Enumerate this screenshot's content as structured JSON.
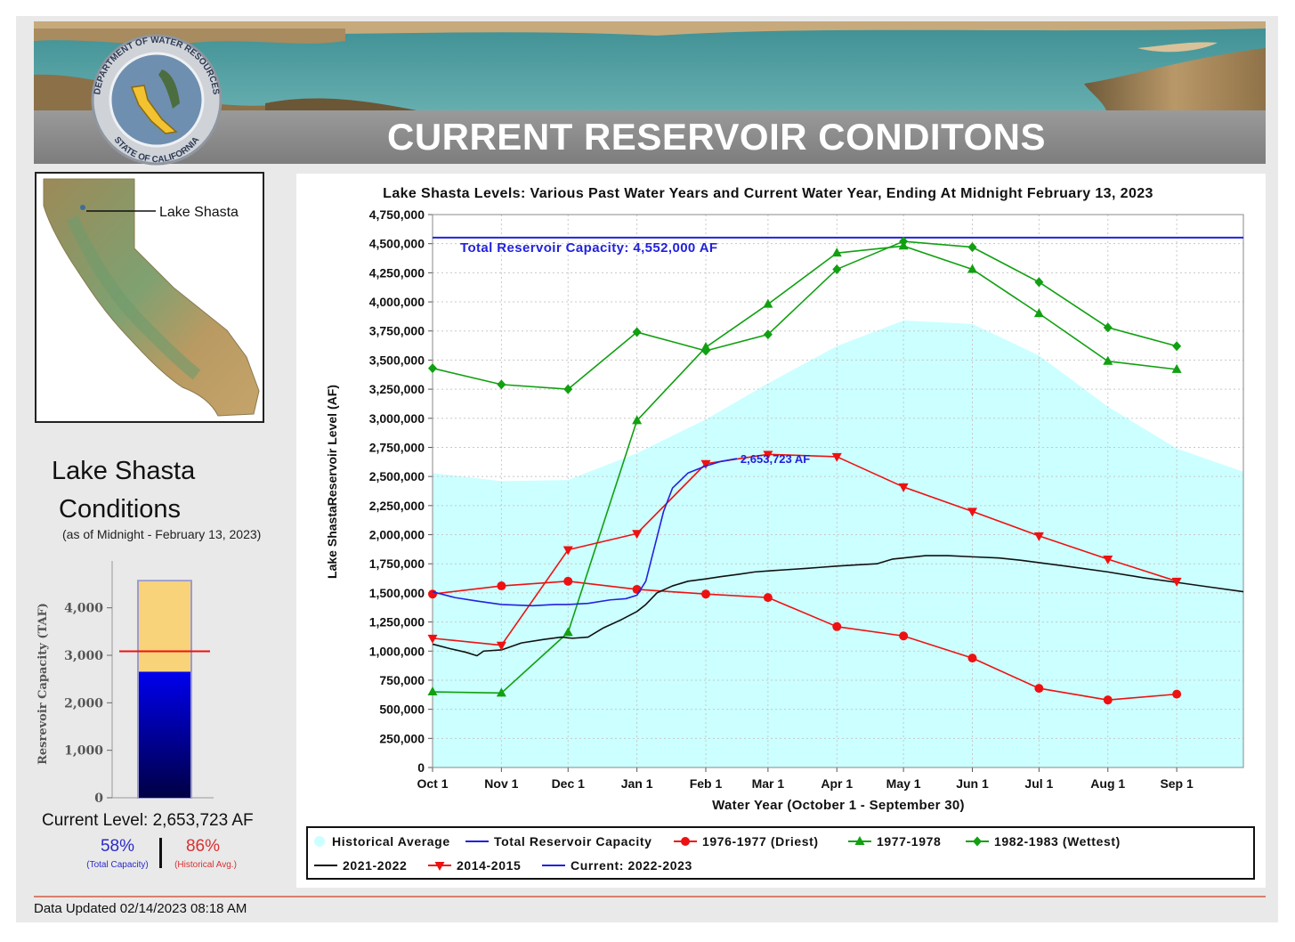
{
  "header": {
    "title": "CURRENT RESERVOIR CONDITONS"
  },
  "seal": {
    "text_top": "DEPARTMENT OF WATER RESOURCES",
    "text_bottom": "STATE OF CALIFORNIA"
  },
  "map": {
    "label": "Lake Shasta"
  },
  "conditions": {
    "title_line1": "Lake Shasta",
    "title_line2": "Conditions",
    "subtitle": "(as of Midnight - February 13, 2023)",
    "current_level": "Current Level: 2,653,723 AF",
    "pct_total": "58%",
    "pct_total_label": "(Total Capacity)",
    "pct_hist": "86%",
    "pct_hist_label": "(Historical Avg.)"
  },
  "gauge": {
    "ylabel": "Resrevoir Capacity (TAF)",
    "ticks": [
      0,
      1000,
      2000,
      3000,
      4000
    ],
    "tick_labels": [
      "0",
      "1,000",
      "2,000",
      "3,000",
      "4,000"
    ],
    "ymax": 4800,
    "capacity_taf": 4552,
    "current_taf": 2653.723,
    "historical_avg_taf": 3085,
    "colors": {
      "capacity": "#f8d37a",
      "current_top": "#0000ee",
      "current_bottom": "#000044",
      "hist_line": "#ee1111"
    }
  },
  "footer": {
    "updated": "Data Updated 02/14/2023 08:18 AM"
  },
  "colors": {
    "historical": "#ccffff",
    "capacity": "#2222dd",
    "driest": "#ee1111",
    "wet7778": "#11a011",
    "wettest": "#11a011",
    "y2122": "#111111",
    "y1415": "#ee1111",
    "current": "#2222dd"
  },
  "chart_data": {
    "type": "line",
    "title": "Lake Shasta Levels: Various Past Water Years and Current Water Year, Ending At Midnight February 13, 2023",
    "xlabel": "Water Year (October 1 - September 30)",
    "ylabel": "Lake ShastaReservoir Level (AF)",
    "xlim": [
      0,
      365
    ],
    "ylim": [
      0,
      4750000
    ],
    "x_ticks": [
      0,
      31,
      61,
      92,
      123,
      151,
      182,
      212,
      243,
      273,
      304,
      335
    ],
    "x_tick_labels": [
      "Oct 1",
      "Nov 1",
      "Dec 1",
      "Jan 1",
      "Feb 1",
      "Mar 1",
      "Apr 1",
      "May 1",
      "Jun 1",
      "Jul 1",
      "Aug 1",
      "Sep 1"
    ],
    "y_ticks": [
      0,
      250000,
      500000,
      750000,
      1000000,
      1250000,
      1500000,
      1750000,
      2000000,
      2250000,
      2500000,
      2750000,
      3000000,
      3250000,
      3500000,
      3750000,
      4000000,
      4250000,
      4500000,
      4750000
    ],
    "y_tick_labels": [
      "0",
      "250,000",
      "500,000",
      "750,000",
      "1,000,000",
      "1,250,000",
      "1,500,000",
      "1,750,000",
      "2,000,000",
      "2,250,000",
      "2,500,000",
      "2,750,000",
      "3,000,000",
      "3,250,000",
      "3,500,000",
      "3,750,000",
      "4,000,000",
      "4,250,000",
      "4,500,000",
      "4,750,000"
    ],
    "capacity": {
      "value": 4552000,
      "label": "Total Reservoir Capacity: 4,552,000 AF"
    },
    "current_annotation": {
      "x": 137,
      "y": 2653723,
      "label": "2,653,723 AF"
    },
    "series": [
      {
        "key": "historical",
        "name": "Historical Average",
        "kind": "area",
        "x": [
          0,
          31,
          61,
          92,
          123,
          151,
          182,
          212,
          243,
          273,
          304,
          335,
          365
        ],
        "y": [
          2530000,
          2460000,
          2470000,
          2700000,
          2990000,
          3300000,
          3620000,
          3840000,
          3810000,
          3540000,
          3100000,
          2740000,
          2540000
        ]
      },
      {
        "key": "capacity",
        "name": "Total Reservoir Capacity",
        "kind": "line",
        "x": [
          0,
          365
        ],
        "y": [
          4552000,
          4552000
        ]
      },
      {
        "key": "driest",
        "name": "1976-1977 (Driest)",
        "kind": "line",
        "marker": "circle",
        "x": [
          0,
          31,
          61,
          92,
          123,
          151,
          182,
          212,
          243,
          273,
          304,
          335
        ],
        "y": [
          1490000,
          1560000,
          1600000,
          1530000,
          1490000,
          1460000,
          1210000,
          1130000,
          940000,
          680000,
          580000,
          630000
        ]
      },
      {
        "key": "wet7778",
        "name": "1977-1978",
        "kind": "line",
        "marker": "triangle-up",
        "x": [
          0,
          31,
          61,
          92,
          123,
          151,
          182,
          212,
          243,
          273,
          304,
          335
        ],
        "y": [
          650000,
          640000,
          1160000,
          2980000,
          3610000,
          3980000,
          4420000,
          4480000,
          4280000,
          3900000,
          3490000,
          3420000
        ]
      },
      {
        "key": "wettest",
        "name": "1982-1983 (Wettest)",
        "kind": "line",
        "marker": "diamond",
        "x": [
          0,
          31,
          61,
          92,
          123,
          151,
          182,
          212,
          243,
          273,
          304,
          335
        ],
        "y": [
          3430000,
          3290000,
          3250000,
          3740000,
          3580000,
          3720000,
          4280000,
          4520000,
          4470000,
          4170000,
          3780000,
          3620000
        ]
      },
      {
        "key": "y2122",
        "name": "2021-2022",
        "kind": "line",
        "x": [
          0,
          8,
          15,
          20,
          23,
          31,
          40,
          50,
          58,
          63,
          70,
          77,
          85,
          92,
          96,
          101,
          108,
          115,
          123,
          130,
          138,
          145,
          152,
          160,
          168,
          175,
          182,
          190,
          200,
          207,
          212,
          222,
          232,
          243,
          255,
          265,
          273,
          285,
          304,
          320,
          335,
          350,
          365
        ],
        "y": [
          1060000,
          1020000,
          990000,
          960000,
          1000000,
          1010000,
          1070000,
          1100000,
          1120000,
          1110000,
          1120000,
          1200000,
          1270000,
          1340000,
          1400000,
          1500000,
          1560000,
          1600000,
          1620000,
          1640000,
          1660000,
          1680000,
          1690000,
          1700000,
          1710000,
          1720000,
          1730000,
          1740000,
          1750000,
          1790000,
          1800000,
          1820000,
          1820000,
          1810000,
          1800000,
          1780000,
          1760000,
          1730000,
          1680000,
          1630000,
          1590000,
          1550000,
          1510000
        ]
      },
      {
        "key": "y1415",
        "name": "2014-2015",
        "kind": "line",
        "marker": "triangle-down",
        "x": [
          0,
          31,
          61,
          92,
          123,
          151,
          182,
          212,
          243,
          273,
          304,
          335
        ],
        "y": [
          1110000,
          1050000,
          1870000,
          2010000,
          2610000,
          2690000,
          2670000,
          2410000,
          2200000,
          1990000,
          1790000,
          1600000
        ]
      },
      {
        "key": "current",
        "name": "Current: 2022-2023",
        "kind": "line",
        "x": [
          0,
          10,
          20,
          31,
          45,
          55,
          61,
          70,
          80,
          87,
          92,
          96,
          100,
          104,
          108,
          115,
          123,
          130,
          137
        ],
        "y": [
          1510000,
          1460000,
          1430000,
          1400000,
          1390000,
          1400000,
          1400000,
          1410000,
          1440000,
          1450000,
          1480000,
          1600000,
          1900000,
          2200000,
          2400000,
          2530000,
          2590000,
          2630000,
          2653723
        ]
      }
    ]
  }
}
